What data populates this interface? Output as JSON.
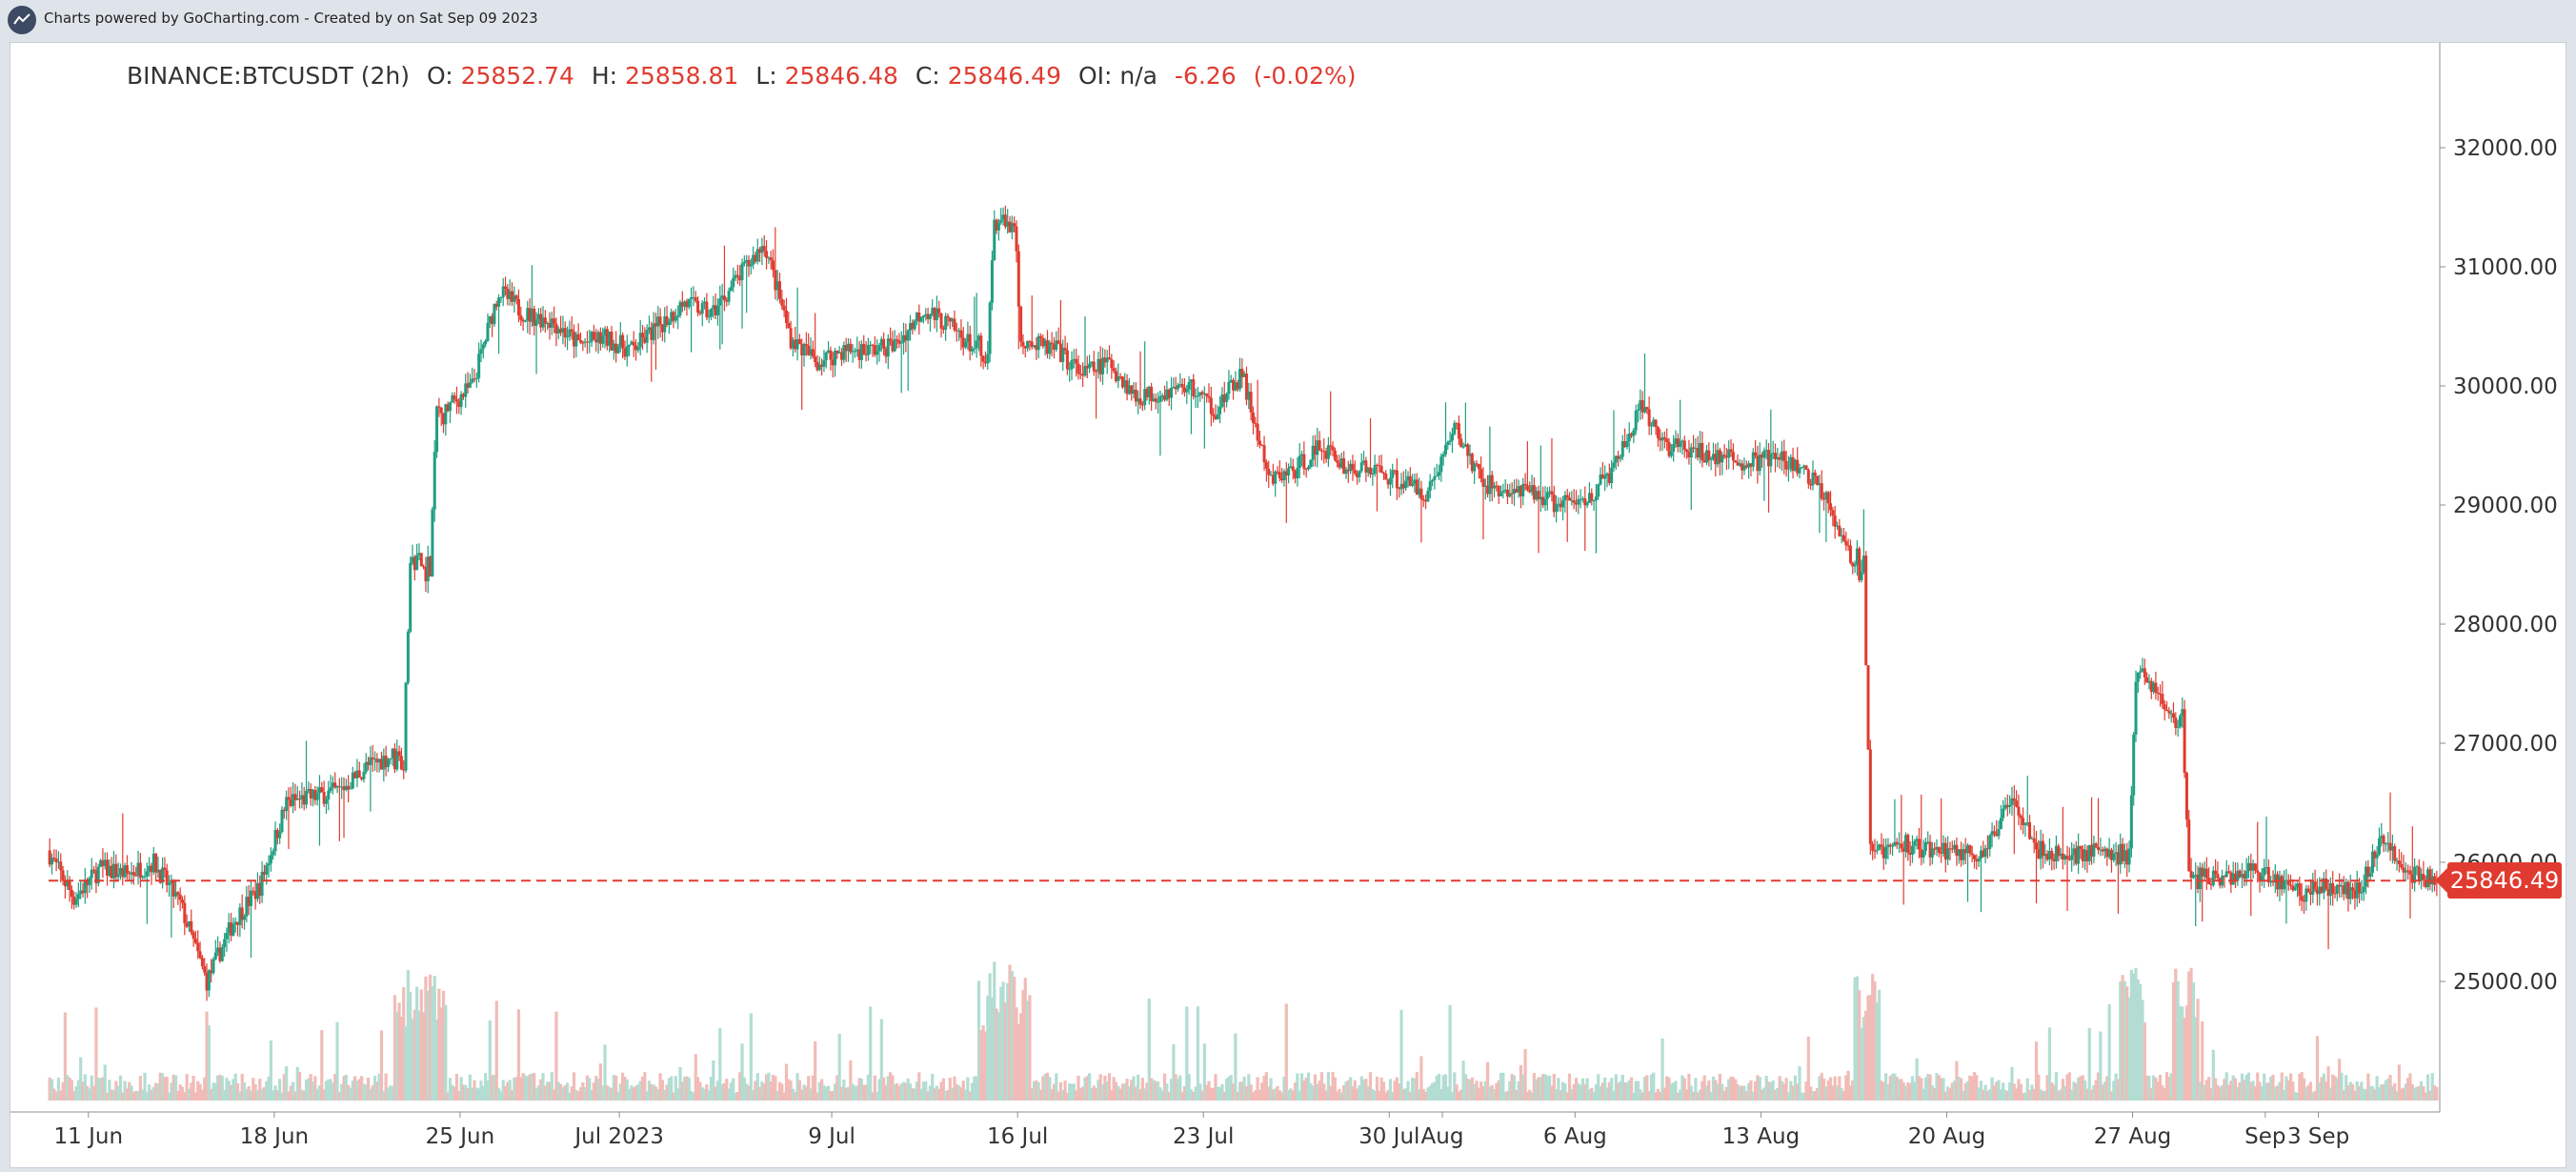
{
  "header": {
    "credit": "Charts powered by GoCharting.com - Created by  on Sat Sep 09 2023",
    "logo_icon": "chart-line-logo-icon"
  },
  "legend": {
    "symbol": "BINANCE:BTCUSDT (2h)",
    "o_label": "O:",
    "o_value": "25852.74",
    "h_label": "H:",
    "h_value": "25858.81",
    "l_label": "L:",
    "l_value": "25846.48",
    "c_label": "C:",
    "c_value": "25846.49",
    "oi_label": "OI:",
    "oi_value": "n/a",
    "change": "-6.26",
    "change_pct": "(-0.02%)"
  },
  "chart_data": {
    "type": "candlestick",
    "symbol": "BINANCE:BTCUSDT",
    "interval": "2h",
    "last_price": 25846.49,
    "last_price_label": "25846.49",
    "ylim": [
      24000,
      32800
    ],
    "y_ticks": [
      "32000.00",
      "31000.00",
      "30000.00",
      "29000.00",
      "28000.00",
      "27000.00",
      "26000.00",
      "25000.00"
    ],
    "y_tick_values": [
      32000,
      31000,
      30000,
      29000,
      28000,
      27000,
      26000,
      25000
    ],
    "x_ticks": [
      "11 Jun",
      "18 Jun",
      "25 Jun",
      "Jul 2023",
      "9 Jul",
      "16 Jul",
      "23 Jul",
      "30 Jul",
      "Aug",
      "6 Aug",
      "13 Aug",
      "20 Aug",
      "27 Aug",
      "Sep",
      "3 Sep"
    ],
    "x_tick_days": [
      1.5,
      8.5,
      15.5,
      21.5,
      29.5,
      36.5,
      43.5,
      50.5,
      52.5,
      57.5,
      64.5,
      71.5,
      78.5,
      83.5,
      85.5
    ],
    "x_range_days": [
      0,
      90
    ],
    "daily_close_path": [
      [
        0,
        26100
      ],
      [
        1,
        25700
      ],
      [
        2,
        25950
      ],
      [
        3,
        25900
      ],
      [
        4,
        26000
      ],
      [
        5,
        25650
      ],
      [
        6,
        25000
      ],
      [
        7,
        25500
      ],
      [
        8,
        25800
      ],
      [
        9,
        26500
      ],
      [
        10,
        26550
      ],
      [
        11,
        26600
      ],
      [
        12,
        26800
      ],
      [
        13,
        26900
      ],
      [
        14,
        28500
      ],
      [
        15,
        29800
      ],
      [
        16,
        30000
      ],
      [
        17,
        30800
      ],
      [
        18,
        30600
      ],
      [
        19,
        30550
      ],
      [
        20,
        30350
      ],
      [
        21,
        30400
      ],
      [
        22,
        30300
      ],
      [
        23,
        30500
      ],
      [
        24,
        30700
      ],
      [
        25,
        30600
      ],
      [
        26,
        30900
      ],
      [
        27,
        31200
      ],
      [
        28,
        30400
      ],
      [
        29,
        30200
      ],
      [
        30,
        30300
      ],
      [
        31,
        30300
      ],
      [
        32,
        30350
      ],
      [
        33,
        30650
      ],
      [
        34,
        30500
      ],
      [
        35,
        30300
      ],
      [
        36,
        31400
      ],
      [
        37,
        30350
      ],
      [
        38,
        30300
      ],
      [
        39,
        30100
      ],
      [
        40,
        30200
      ],
      [
        41,
        29900
      ],
      [
        42,
        29950
      ],
      [
        43,
        30000
      ],
      [
        44,
        29800
      ],
      [
        45,
        30100
      ],
      [
        46,
        29200
      ],
      [
        47,
        29300
      ],
      [
        48,
        29500
      ],
      [
        49,
        29300
      ],
      [
        50,
        29300
      ],
      [
        51,
        29200
      ],
      [
        52,
        29100
      ],
      [
        53,
        29650
      ],
      [
        54,
        29200
      ],
      [
        55,
        29100
      ],
      [
        56,
        29100
      ],
      [
        57,
        29000
      ],
      [
        58,
        29050
      ],
      [
        59,
        29300
      ],
      [
        60,
        29800
      ],
      [
        61,
        29500
      ],
      [
        62,
        29450
      ],
      [
        63,
        29400
      ],
      [
        64,
        29350
      ],
      [
        65,
        29400
      ],
      [
        66,
        29300
      ],
      [
        67,
        29100
      ],
      [
        68,
        28500
      ],
      [
        69,
        26100
      ],
      [
        70,
        26150
      ],
      [
        71,
        26100
      ],
      [
        72,
        26100
      ],
      [
        73,
        26050
      ],
      [
        74,
        26600
      ],
      [
        75,
        26100
      ],
      [
        76,
        26050
      ],
      [
        77,
        26100
      ],
      [
        78,
        26050
      ],
      [
        79,
        27600
      ],
      [
        80,
        27200
      ],
      [
        81,
        25900
      ],
      [
        82,
        25850
      ],
      [
        83,
        25950
      ],
      [
        84,
        25850
      ],
      [
        85,
        25750
      ],
      [
        86,
        25800
      ],
      [
        87,
        25750
      ],
      [
        88,
        26200
      ],
      [
        89,
        25900
      ],
      [
        90,
        25846
      ]
    ],
    "series": [
      {
        "name": "Price"
      },
      {
        "name": "Volume"
      }
    ],
    "colors": {
      "up": "#1f9e80",
      "down": "#e03b30",
      "volume_up": "#b3ddd3",
      "volume_down": "#f1bcb7",
      "axis_text": "#333333"
    },
    "grid": false
  }
}
